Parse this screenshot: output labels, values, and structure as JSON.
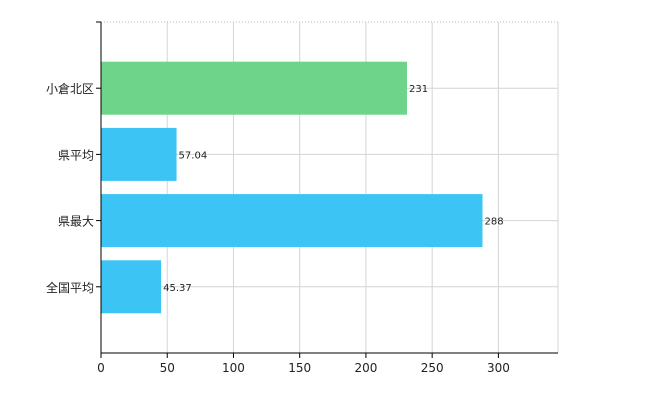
{
  "chart_data": {
    "type": "bar",
    "orientation": "horizontal",
    "categories": [
      "小倉北区",
      "県平均",
      "県最大",
      "全国平均"
    ],
    "values": [
      231,
      57.04,
      288,
      45.37
    ],
    "value_labels": [
      "231",
      "57.04",
      "288",
      "45.37"
    ],
    "bar_colors": [
      "#6dd48a",
      "#3cc4f5",
      "#3cc4f5",
      "#3cc4f5"
    ],
    "xlim": [
      0,
      345
    ],
    "x_ticks": [
      0,
      50,
      100,
      150,
      200,
      250,
      300
    ],
    "grid": true,
    "title": "",
    "xlabel": "",
    "ylabel": ""
  }
}
